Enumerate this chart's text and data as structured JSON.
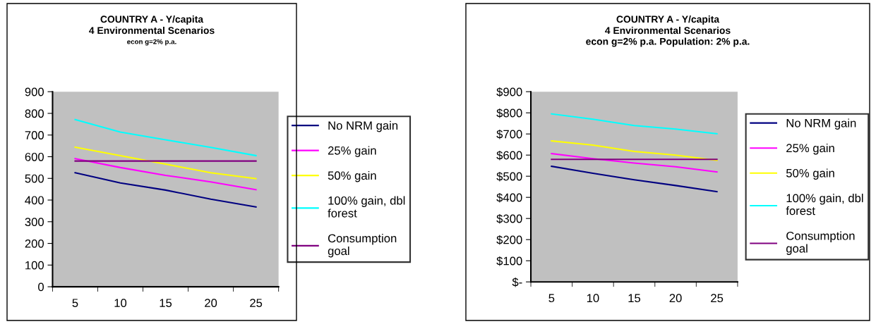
{
  "chart_data": [
    {
      "type": "line",
      "title": "COUNTRY A - Y/capita\n4 Environmental Scenarios",
      "subtitle": "econ g=2% p.a.",
      "categories": [
        "5",
        "10",
        "15",
        "20",
        "25"
      ],
      "ylim": [
        0,
        900
      ],
      "yticks": [
        0,
        100,
        200,
        300,
        400,
        500,
        600,
        700,
        800,
        900
      ],
      "grid": false,
      "legend": "right",
      "marker": "none",
      "line_style": "solid",
      "series": [
        {
          "name": "No NRM gain",
          "color": "#000080",
          "values": [
            526,
            479,
            446,
            404,
            368
          ]
        },
        {
          "name": "25% gain",
          "color": "#ff00ff",
          "values": [
            591,
            550,
            514,
            484,
            448
          ]
        },
        {
          "name": "50% gain",
          "color": "#ffff00",
          "values": [
            644,
            605,
            566,
            526,
            499
          ]
        },
        {
          "name": "100% gain, dbl forest",
          "color": "#00ffff",
          "values": [
            771,
            714,
            678,
            643,
            605
          ]
        },
        {
          "name": "Consumption goal",
          "color": "#800080",
          "values": [
            580,
            580,
            580,
            580,
            580
          ]
        }
      ]
    },
    {
      "type": "line",
      "title": "COUNTRY A - Y/capita\n4 Environmental Scenarios",
      "subtitle": "econ g=2% p.a. Population: 2% p.a.",
      "categories": [
        "5",
        "10",
        "15",
        "20",
        "25"
      ],
      "ylim": [
        0,
        900
      ],
      "yticks": [
        {
          "value": 0,
          "label": "$-"
        },
        {
          "value": 100,
          "label": "$100"
        },
        {
          "value": 200,
          "label": "$200"
        },
        {
          "value": 300,
          "label": "$300"
        },
        {
          "value": 400,
          "label": "$400"
        },
        {
          "value": 500,
          "label": "$500"
        },
        {
          "value": 600,
          "label": "$600"
        },
        {
          "value": 700,
          "label": "$700"
        },
        {
          "value": 800,
          "label": "$800"
        },
        {
          "value": 900,
          "label": "$900"
        }
      ],
      "grid": false,
      "legend": "right",
      "marker": "none",
      "line_style": "solid",
      "series": [
        {
          "name": "No NRM gain",
          "color": "#000080",
          "values": [
            547,
            514,
            483,
            456,
            427
          ]
        },
        {
          "name": "25% gain",
          "color": "#ff00ff",
          "values": [
            607,
            583,
            562,
            545,
            520
          ]
        },
        {
          "name": "50% gain",
          "color": "#ffff00",
          "values": [
            667,
            647,
            617,
            600,
            575
          ]
        },
        {
          "name": "100% gain, dbl forest",
          "color": "#00ffff",
          "values": [
            795,
            770,
            740,
            723,
            701
          ]
        },
        {
          "name": "Consumption goal",
          "color": "#800080",
          "values": [
            580,
            580,
            580,
            580,
            580
          ]
        }
      ]
    }
  ]
}
